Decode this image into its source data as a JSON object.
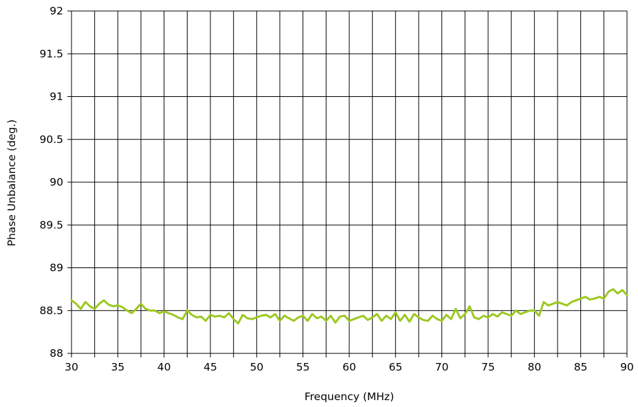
{
  "chart_data": {
    "type": "line",
    "title": "",
    "xlabel": "Frequency (MHz)",
    "ylabel": "Phase Unbalance (deg.)",
    "xlim": [
      30,
      90
    ],
    "ylim": [
      88,
      92
    ],
    "xticks": [
      "30",
      "35",
      "40",
      "45",
      "50",
      "55",
      "60",
      "65",
      "70",
      "75",
      "80",
      "85",
      "90"
    ],
    "yticks": [
      "88",
      "88.5",
      "89",
      "89.5",
      "90",
      "90.5",
      "91",
      "91.5",
      "92"
    ],
    "grid": {
      "vertical_step": 2.5,
      "horizontal_step": 0.5
    },
    "series_color": "#9cc820",
    "series": [
      {
        "x": [
          30,
          30.5,
          31,
          31.5,
          32,
          32.5,
          33,
          33.5,
          34,
          34.5,
          35,
          35.5,
          36,
          36.5,
          37,
          37.5,
          38,
          38.5,
          39,
          39.5,
          40,
          40.5,
          41,
          41.5,
          42,
          42.5,
          43,
          43.5,
          44,
          44.5,
          45,
          45.5,
          46,
          46.5,
          47,
          47.5,
          48,
          48.5,
          49,
          49.5,
          50,
          50.5,
          51,
          51.5,
          52,
          52.5,
          53,
          53.5,
          54,
          54.5,
          55,
          55.5,
          56,
          56.5,
          57,
          57.5,
          58,
          58.5,
          59,
          59.5,
          60,
          60.5,
          61,
          61.5,
          62,
          62.5,
          63,
          63.5,
          64,
          64.5,
          65,
          65.5,
          66,
          66.5,
          67,
          67.5,
          68,
          68.5,
          69,
          69.5,
          70,
          70.5,
          71,
          71.5,
          72,
          72.5,
          73,
          73.5,
          74,
          74.5,
          75,
          75.5,
          76,
          76.5,
          77,
          77.5,
          78,
          78.5,
          79,
          79.5,
          80,
          80.5,
          81,
          81.5,
          82,
          82.5,
          83,
          83.5,
          84,
          84.5,
          85,
          85.5,
          86,
          86.5,
          87,
          87.5,
          88,
          88.5,
          89,
          89.5,
          90
        ],
        "y": [
          88.62,
          88.58,
          88.52,
          88.6,
          88.55,
          88.52,
          88.58,
          88.62,
          88.57,
          88.55,
          88.56,
          88.54,
          88.5,
          88.47,
          88.52,
          88.58,
          88.52,
          88.5,
          88.5,
          88.47,
          88.49,
          88.47,
          88.45,
          88.42,
          88.4,
          88.5,
          88.45,
          88.42,
          88.43,
          88.38,
          88.45,
          88.43,
          88.44,
          88.42,
          88.47,
          88.4,
          88.35,
          88.45,
          88.41,
          88.4,
          88.42,
          88.44,
          88.45,
          88.42,
          88.46,
          88.38,
          88.44,
          88.41,
          88.38,
          88.42,
          88.44,
          88.38,
          88.46,
          88.41,
          88.43,
          88.38,
          88.44,
          88.36,
          88.43,
          88.44,
          88.38,
          88.4,
          88.42,
          88.44,
          88.39,
          88.42,
          88.46,
          88.38,
          88.44,
          88.4,
          88.48,
          88.38,
          88.45,
          88.37,
          88.46,
          88.42,
          88.39,
          88.38,
          88.44,
          88.4,
          88.38,
          88.45,
          88.4,
          88.52,
          88.41,
          88.46,
          88.55,
          88.42,
          88.4,
          88.44,
          88.42,
          88.46,
          88.43,
          88.48,
          88.46,
          88.44,
          88.5,
          88.46,
          88.48,
          88.5,
          88.5,
          88.44,
          88.6,
          88.56,
          88.58,
          88.6,
          88.58,
          88.56,
          88.6,
          88.62,
          88.64,
          88.66,
          88.63,
          88.64,
          88.66,
          88.64,
          88.72,
          88.75,
          88.7,
          88.74,
          88.68
        ]
      }
    ]
  }
}
